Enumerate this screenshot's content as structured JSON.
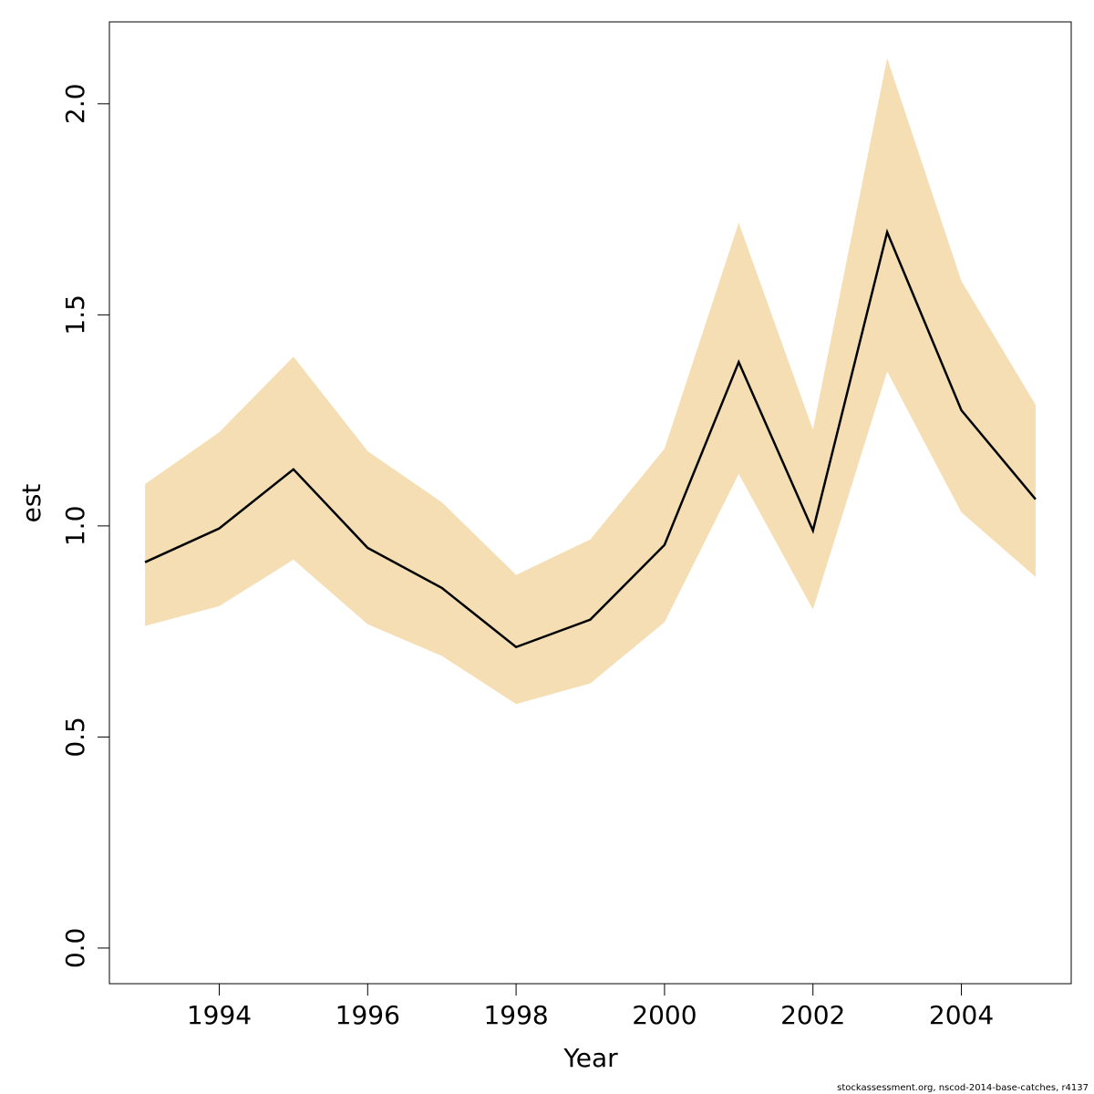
{
  "chart_data": {
    "type": "line",
    "xlabel": "Year",
    "ylabel": "est",
    "x": [
      1993,
      1994,
      1995,
      1996,
      1997,
      1998,
      1999,
      2000,
      2001,
      2002,
      2003,
      2004,
      2005
    ],
    "values": [
      0.914,
      0.994,
      1.134,
      0.948,
      0.853,
      0.713,
      0.778,
      0.955,
      1.388,
      0.989,
      1.696,
      1.274,
      1.063
    ],
    "lower": [
      0.763,
      0.81,
      0.92,
      0.767,
      0.692,
      0.578,
      0.627,
      0.772,
      1.123,
      0.802,
      1.366,
      1.032,
      0.879
    ],
    "upper": [
      1.099,
      1.222,
      1.401,
      1.177,
      1.056,
      0.884,
      0.968,
      1.183,
      1.718,
      1.228,
      2.108,
      1.58,
      1.287
    ],
    "color": "#000000",
    "band_color": "#f5deb3",
    "xlim": [
      1992.52,
      2005.48
    ],
    "ylim": [
      -0.0844,
      2.194
    ],
    "xticks": [
      1994,
      1996,
      1998,
      2000,
      2002,
      2004
    ],
    "yticks": [
      {
        "value": 0,
        "label": "0.0"
      },
      {
        "value": 0.5,
        "label": "0.5"
      },
      {
        "value": 1,
        "label": "1.0"
      },
      {
        "value": 1.5,
        "label": "1.5"
      },
      {
        "value": 2,
        "label": "2.0"
      }
    ],
    "footer": "stockassessment.org, nscod-2014-base-catches, r4137"
  }
}
